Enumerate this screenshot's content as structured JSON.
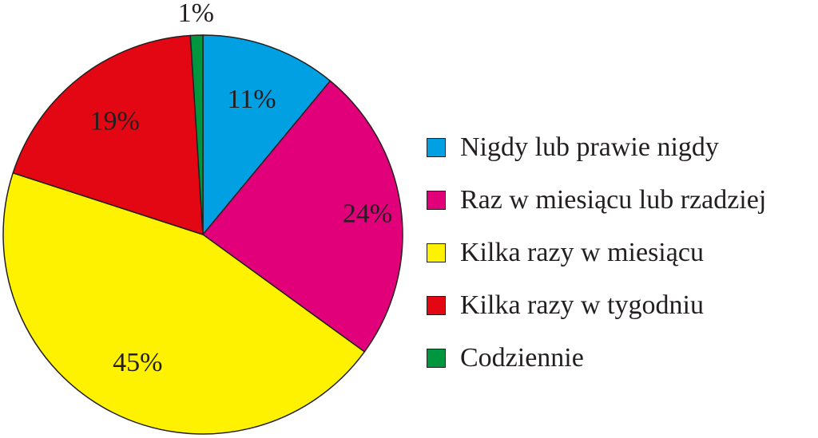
{
  "chart_data": {
    "type": "pie",
    "title": "",
    "slices": [
      {
        "label": "Nigdy lub prawie nigdy",
        "value": 11,
        "value_label": "11%",
        "color": "#00a0e3"
      },
      {
        "label": "Raz w miesiącu lub rzadziej",
        "value": 24,
        "value_label": "24%",
        "color": "#e2007a"
      },
      {
        "label": "Kilka razy w miesiącu",
        "value": 45,
        "value_label": "45%",
        "color": "#fff200"
      },
      {
        "label": "Kilka razy w tygodniu",
        "value": 19,
        "value_label": "19%",
        "color": "#e30613"
      },
      {
        "label": "Codziennie",
        "value": 1,
        "value_label": "1%",
        "color": "#00963f"
      }
    ],
    "start": "top",
    "direction": "clockwise",
    "legend_position": "right"
  }
}
